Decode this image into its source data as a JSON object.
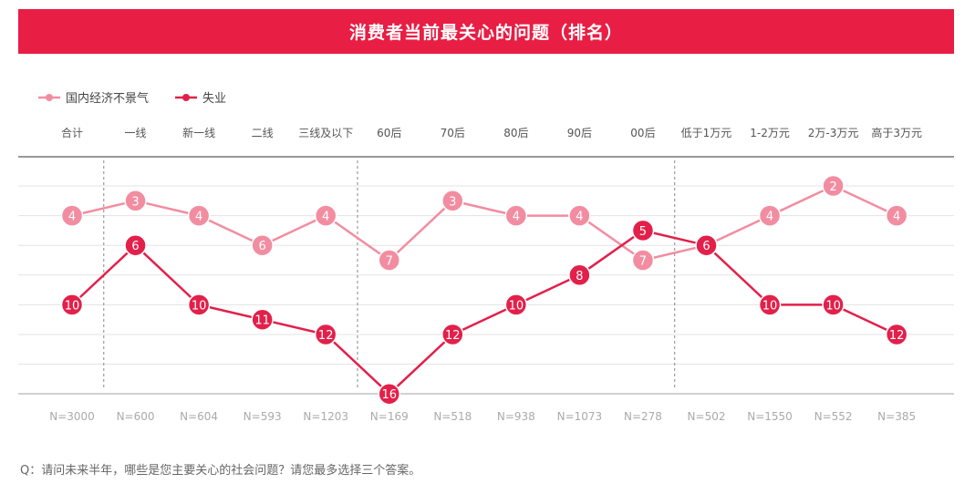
{
  "chart_data": {
    "type": "line",
    "title": "消费者当前最关心的问题（排名）",
    "categories": [
      "合计",
      "一线",
      "新一线",
      "二线",
      "三线及以下",
      "60后",
      "70后",
      "80后",
      "90后",
      "00后",
      "低于1万元",
      "1-2万元",
      "2万-3万元",
      "高于3万元"
    ],
    "sample_sizes": [
      "N=3000",
      "N=600",
      "N=604",
      "N=593",
      "N=1203",
      "N=169",
      "N=518",
      "N=938",
      "N=1073",
      "N=278",
      "N=502",
      "N=1550",
      "N=552",
      "N=385"
    ],
    "series": [
      {
        "name": "国内经济不景气",
        "color": "#f28da1",
        "values": [
          4,
          3,
          4,
          6,
          4,
          7,
          3,
          4,
          4,
          7,
          6,
          4,
          2,
          4
        ]
      },
      {
        "name": "失业",
        "color": "#e2204a",
        "values": [
          10,
          6,
          10,
          11,
          12,
          16,
          12,
          10,
          8,
          5,
          6,
          10,
          10,
          12
        ]
      }
    ],
    "y_axis": {
      "reversed": true,
      "min": 2,
      "max": 16,
      "labels_shown": false
    },
    "grid": true,
    "legend": "top-left",
    "footnote": "Q：请问未来半年，哪些是您主要关心的社会问题？请您最多选择三个答案。"
  }
}
